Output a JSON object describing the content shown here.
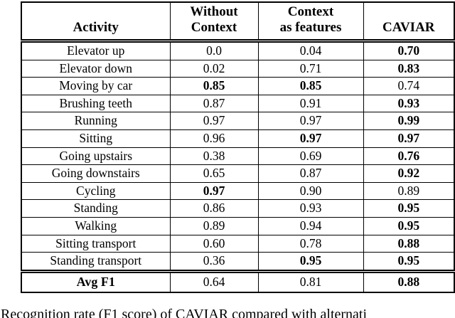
{
  "table": {
    "headers": [
      "Activity",
      "Without\nContext",
      "Context\nas features",
      "CAVIAR"
    ],
    "rows": [
      {
        "activity": "Elevator up",
        "values": [
          "0.0",
          "0.04",
          "0.70"
        ],
        "bold": [
          false,
          false,
          true
        ]
      },
      {
        "activity": "Elevator down",
        "values": [
          "0.02",
          "0.71",
          "0.83"
        ],
        "bold": [
          false,
          false,
          true
        ]
      },
      {
        "activity": "Moving by car",
        "values": [
          "0.85",
          "0.85",
          "0.74"
        ],
        "bold": [
          true,
          true,
          false
        ]
      },
      {
        "activity": "Brushing teeth",
        "values": [
          "0.87",
          "0.91",
          "0.93"
        ],
        "bold": [
          false,
          false,
          true
        ]
      },
      {
        "activity": "Running",
        "values": [
          "0.97",
          "0.97",
          "0.99"
        ],
        "bold": [
          false,
          false,
          true
        ]
      },
      {
        "activity": "Sitting",
        "values": [
          "0.96",
          "0.97",
          "0.97"
        ],
        "bold": [
          false,
          true,
          true
        ]
      },
      {
        "activity": "Going upstairs",
        "values": [
          "0.38",
          "0.69",
          "0.76"
        ],
        "bold": [
          false,
          false,
          true
        ]
      },
      {
        "activity": "Going downstairs",
        "values": [
          "0.65",
          "0.87",
          "0.92"
        ],
        "bold": [
          false,
          false,
          true
        ]
      },
      {
        "activity": "Cycling",
        "values": [
          "0.97",
          "0.90",
          "0.89"
        ],
        "bold": [
          true,
          false,
          false
        ]
      },
      {
        "activity": "Standing",
        "values": [
          "0.86",
          "0.93",
          "0.95"
        ],
        "bold": [
          false,
          false,
          true
        ]
      },
      {
        "activity": "Walking",
        "values": [
          "0.89",
          "0.94",
          "0.95"
        ],
        "bold": [
          false,
          false,
          true
        ]
      },
      {
        "activity": "Sitting transport",
        "values": [
          "0.60",
          "0.78",
          "0.88"
        ],
        "bold": [
          false,
          false,
          true
        ]
      },
      {
        "activity": "Standing transport",
        "values": [
          "0.36",
          "0.95",
          "0.95"
        ],
        "bold": [
          false,
          true,
          true
        ]
      }
    ],
    "footer": {
      "label": "Avg F1",
      "values": [
        "0.64",
        "0.81",
        "0.88"
      ],
      "bold": [
        false,
        false,
        true
      ]
    }
  },
  "caption": {
    "text": "Recognition rate (F1 score) of CAVIAR compared with alternati"
  },
  "colors": {
    "text": "#000000",
    "background": "#ffffff",
    "border": "#000000"
  }
}
